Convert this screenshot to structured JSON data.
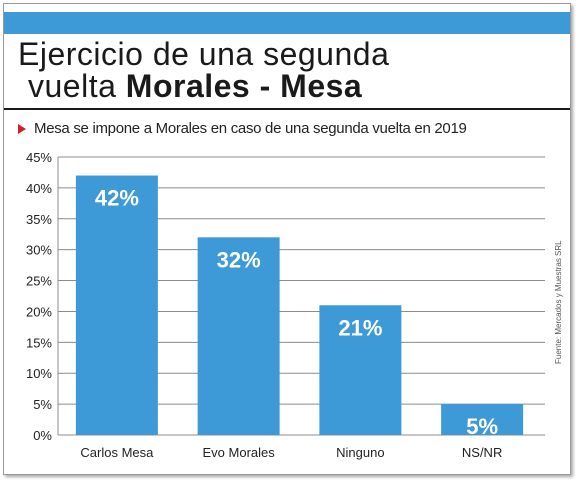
{
  "header": {
    "title_line1": "Ejercicio de una segunda",
    "title_line2_normal": "vuelta ",
    "title_line2_bold": "Morales - Mesa",
    "subtitle": "Mesa se impone a Morales en caso de una segunda vuelta en 2019",
    "source": "Fuente: Mercados y Muestras SRL"
  },
  "colors": {
    "bar": "#3d9ad6",
    "accent": "#d0202a",
    "banner": "#3d9ad6"
  },
  "chart_data": {
    "type": "bar",
    "title": "Ejercicio de una segunda vuelta Morales - Mesa",
    "subtitle": "Mesa se impone a Morales en caso de una segunda vuelta en 2019",
    "categories": [
      "Carlos Mesa",
      "Evo Morales",
      "Ninguno",
      "NS/NR"
    ],
    "values": [
      42,
      32,
      21,
      5
    ],
    "data_labels": [
      "42%",
      "32%",
      "21%",
      "5%"
    ],
    "y_ticks": [
      "0%",
      "5%",
      "10%",
      "15%",
      "20%",
      "25%",
      "30%",
      "35%",
      "40%",
      "45%"
    ],
    "ylim": [
      0,
      45
    ],
    "grid": true,
    "legend": "none",
    "xlabel": "",
    "ylabel": ""
  }
}
